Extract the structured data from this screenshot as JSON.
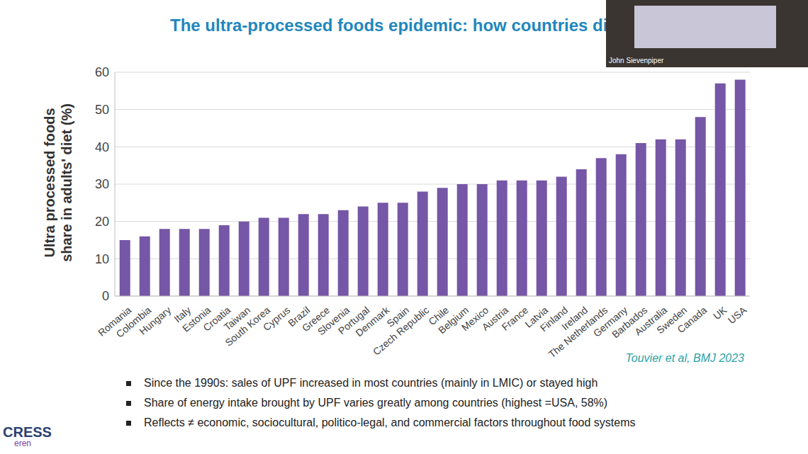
{
  "chart_data": {
    "type": "bar",
    "title": "The ultra-processed foods epidemic: how countries diff",
    "y_label": [
      "Ultra processed foods",
      "share in adults' diet (%)"
    ],
    "categories": [
      "Romania",
      "Colombia",
      "Hungary",
      "Italy",
      "Estonia",
      "Croatia",
      "Taiwan",
      "South Korea",
      "Cyprus",
      "Brazil",
      "Greece",
      "Slovenia",
      "Portugal",
      "Denmark",
      "Spain",
      "Czech Republic",
      "Chile",
      "Belgium",
      "Mexico",
      "Austria",
      "France",
      "Latvia",
      "Finland",
      "Ireland",
      "The Netherlands",
      "Germany",
      "Barbados",
      "Australia",
      "Sweden",
      "Canada",
      "UK",
      "USA"
    ],
    "values": [
      15,
      16,
      18,
      18,
      18,
      19,
      20,
      21,
      21,
      22,
      22,
      23,
      24,
      25,
      25,
      28,
      29,
      30,
      30,
      31,
      31,
      31,
      32,
      34,
      37,
      38,
      41,
      42,
      42,
      48,
      57,
      58
    ],
    "color": "#7656a6",
    "ylim": [
      0,
      60
    ],
    "yticks": [
      0,
      10,
      20,
      30,
      40,
      50,
      60
    ],
    "grid": true,
    "source": "Touvier et al, BMJ 2023",
    "bullets": [
      "Since the 1990s: sales of UPF increased in most countries (mainly in LMIC) or stayed high",
      "Share of energy intake brought by UPF varies greatly among countries (highest =USA, 58%)",
      "Reflects ≠ economic, sociocultural, politico-legal, and commercial factors throughout food systems"
    ],
    "logo": [
      "CRESS",
      "eren"
    ],
    "speaker": "John Sievenpiper"
  }
}
